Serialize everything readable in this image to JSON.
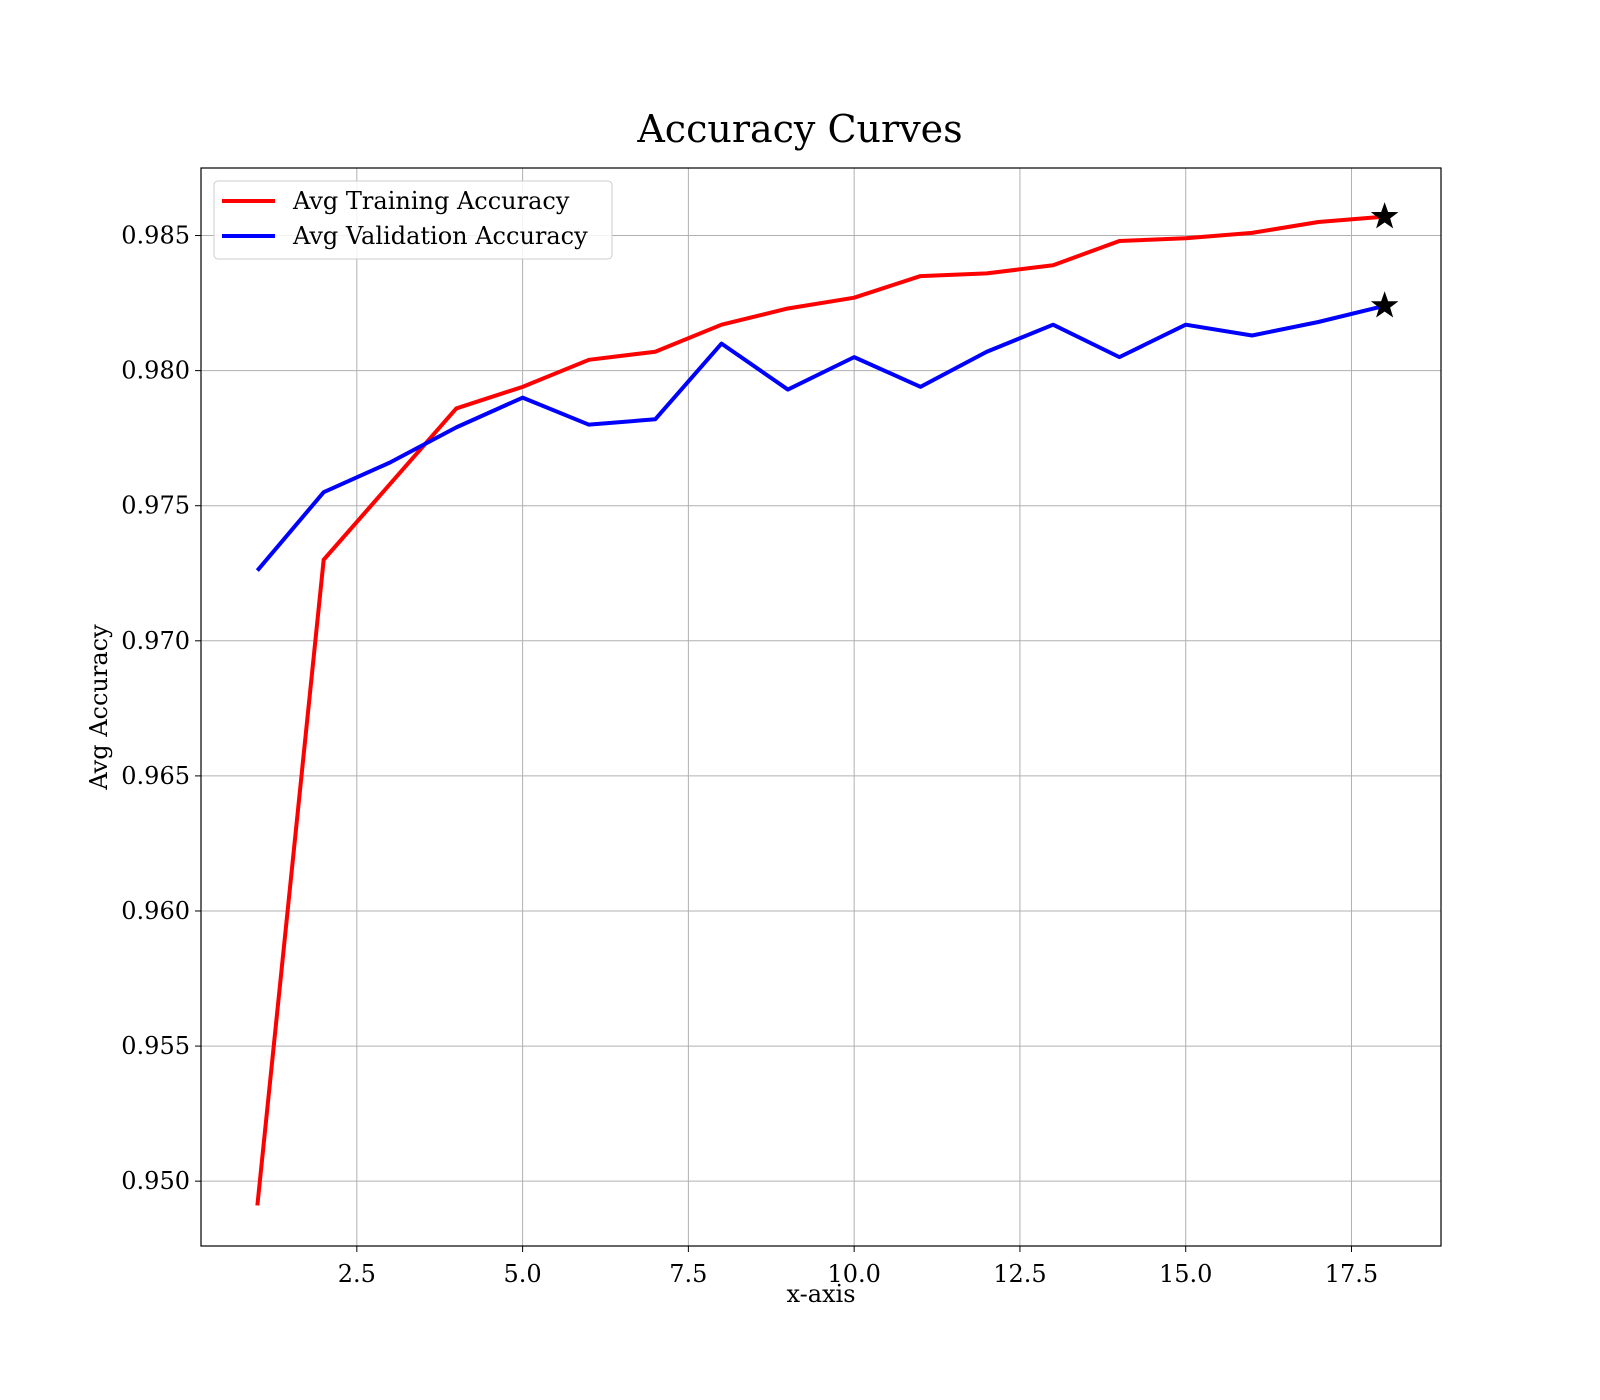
{
  "chart_data": {
    "type": "line",
    "title": "Accuracy Curves",
    "xlabel": "x-axis",
    "ylabel": "Avg Accuracy",
    "xlim": [
      0.15,
      18.85
    ],
    "ylim": [
      0.9476,
      0.9875
    ],
    "xticks": [
      2.5,
      5.0,
      7.5,
      10.0,
      12.5,
      15.0,
      17.5
    ],
    "xtick_labels": [
      "2.5",
      "5.0",
      "7.5",
      "10.0",
      "12.5",
      "15.0",
      "17.5"
    ],
    "yticks": [
      0.95,
      0.955,
      0.96,
      0.965,
      0.97,
      0.975,
      0.98,
      0.985
    ],
    "ytick_labels": [
      "0.950",
      "0.955",
      "0.960",
      "0.965",
      "0.970",
      "0.975",
      "0.980",
      "0.985"
    ],
    "grid": true,
    "legend_position": "top-left",
    "x": [
      1,
      2,
      3,
      4,
      5,
      6,
      7,
      8,
      9,
      10,
      11,
      12,
      13,
      14,
      15,
      16,
      17,
      18
    ],
    "series": [
      {
        "name": "Avg Training Accuracy",
        "color": "#ff0000",
        "values": [
          0.9491,
          0.973,
          0.9758,
          0.9786,
          0.9794,
          0.9804,
          0.9807,
          0.9817,
          0.9823,
          0.9827,
          0.9835,
          0.9836,
          0.9839,
          0.9848,
          0.9849,
          0.9851,
          0.9855,
          0.9857
        ],
        "best_marker": {
          "x": 18,
          "y": 0.9857,
          "symbol": "star",
          "color": "#000000"
        }
      },
      {
        "name": "Avg Validation Accuracy",
        "color": "#0000ff",
        "values": [
          0.9726,
          0.9755,
          0.9766,
          0.9779,
          0.979,
          0.978,
          0.9782,
          0.981,
          0.9793,
          0.9805,
          0.9794,
          0.9807,
          0.9817,
          0.9805,
          0.9817,
          0.9813,
          0.9818,
          0.9824
        ],
        "best_marker": {
          "x": 18,
          "y": 0.9824,
          "symbol": "star",
          "color": "#000000"
        }
      }
    ]
  }
}
